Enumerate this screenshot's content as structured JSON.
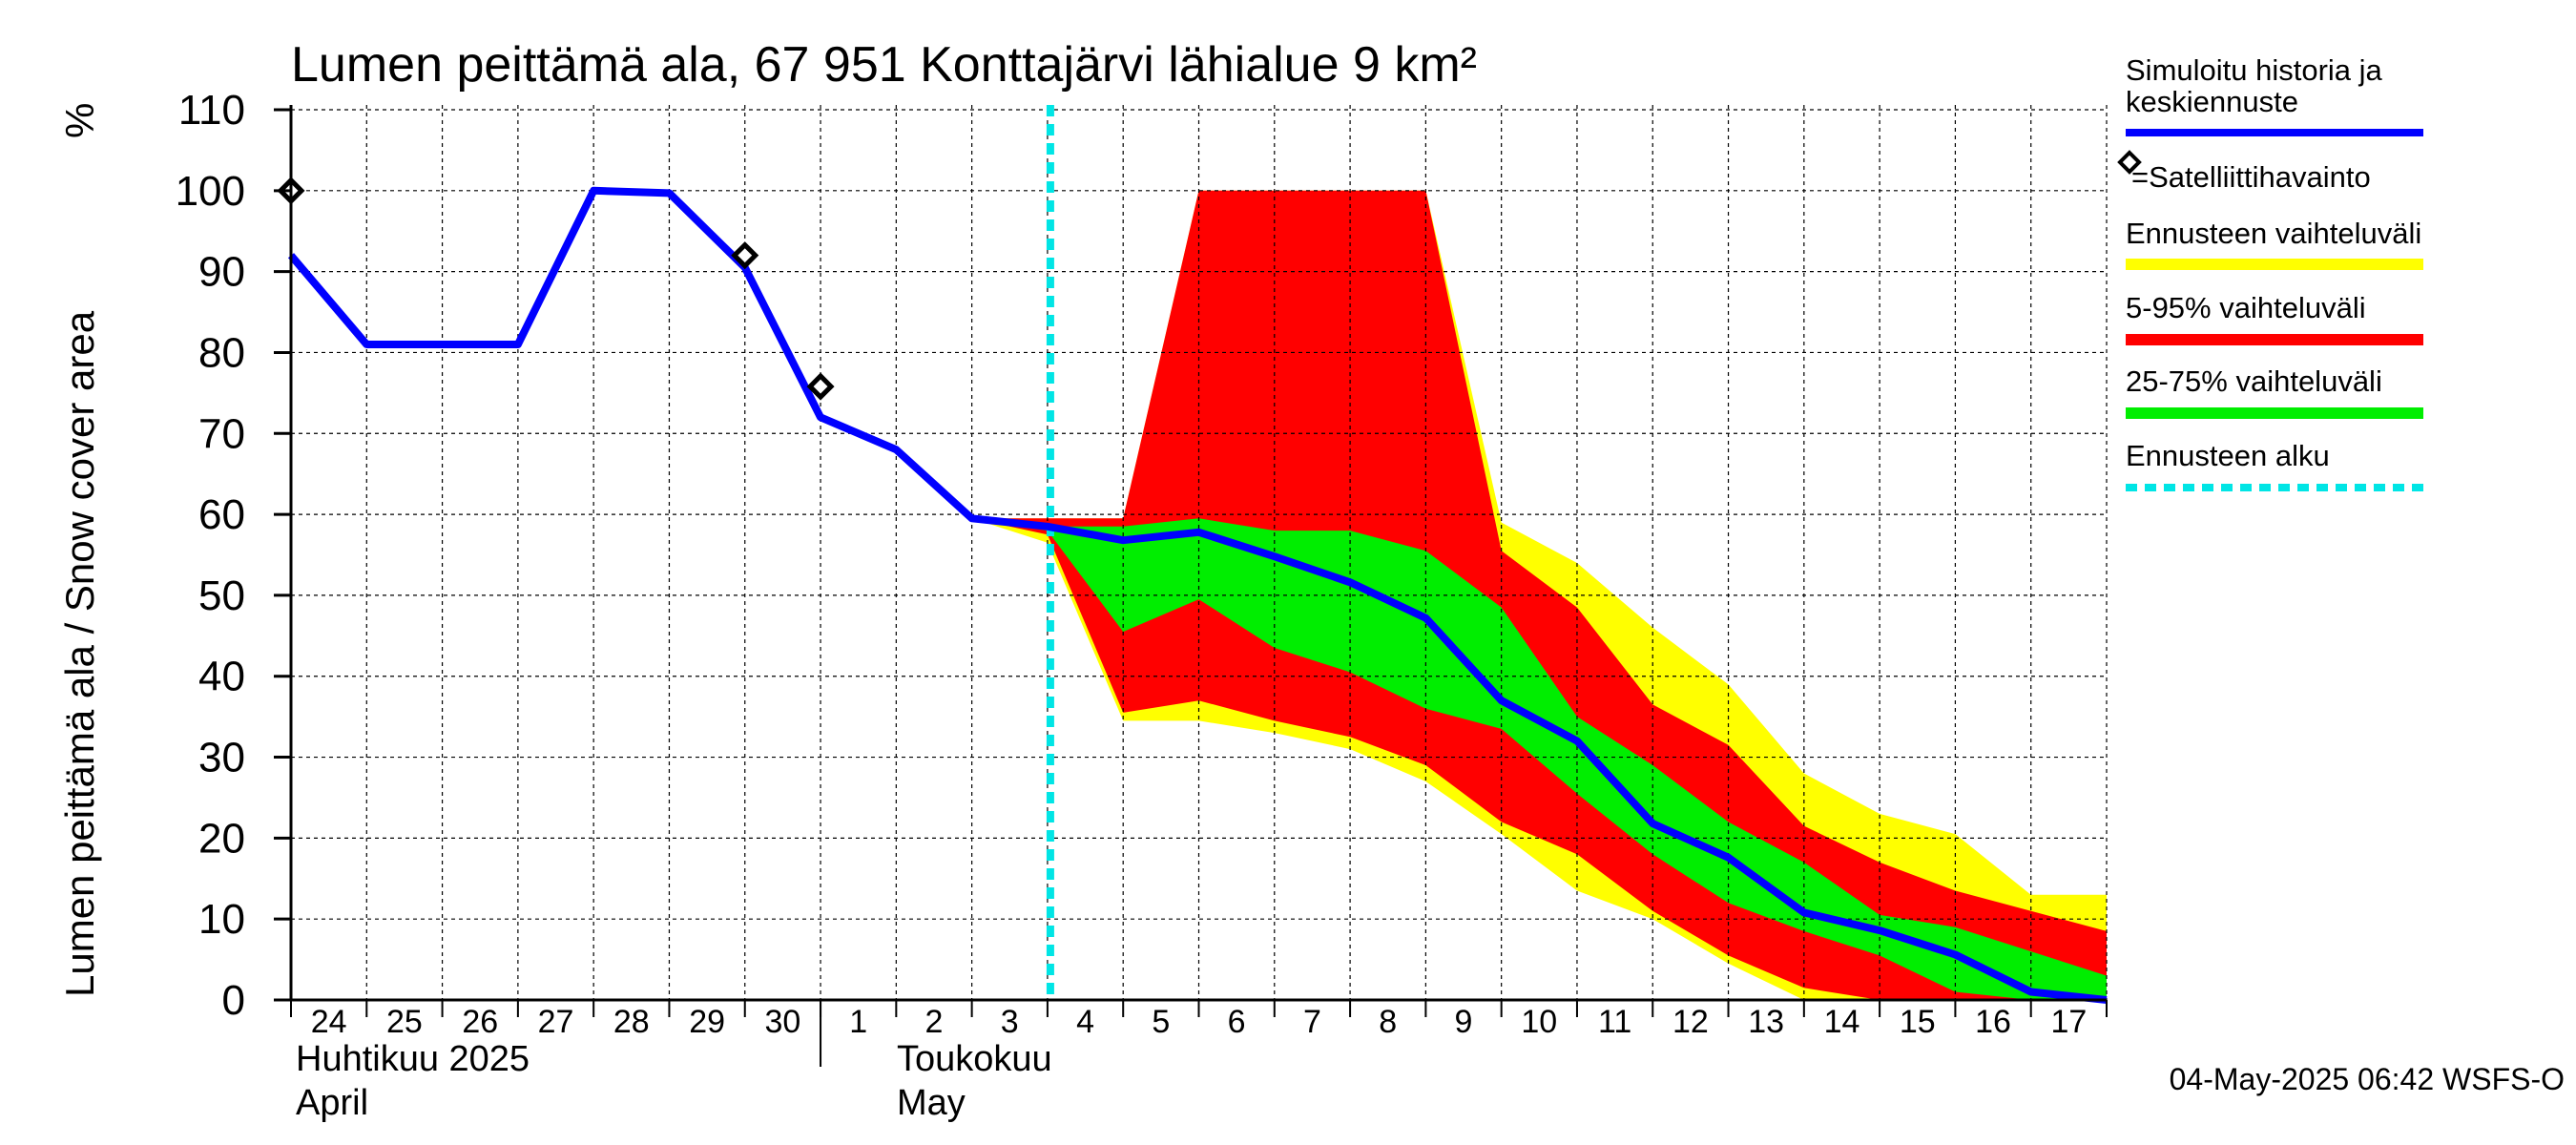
{
  "chart_data": {
    "type": "area",
    "title": "Lumen peittämä ala, 67 951 Konttajärvi lähialue 9 km²",
    "ylabel": "Lumen peittämä ala / Snow cover area",
    "yunit": "%",
    "ylim": [
      0,
      110
    ],
    "yticks": [
      0,
      10,
      20,
      30,
      40,
      50,
      60,
      70,
      80,
      90,
      100,
      110
    ],
    "x_days": [
      "24",
      "25",
      "26",
      "27",
      "28",
      "29",
      "30",
      "1",
      "2",
      "3",
      "4",
      "5",
      "6",
      "7",
      "8",
      "9",
      "10",
      "11",
      "12",
      "13",
      "14",
      "15",
      "16",
      "17"
    ],
    "x_dates": [
      "2025-04-24",
      "2025-04-25",
      "2025-04-26",
      "2025-04-27",
      "2025-04-28",
      "2025-04-29",
      "2025-04-30",
      "2025-05-01",
      "2025-05-02",
      "2025-05-03",
      "2025-05-04",
      "2025-05-05",
      "2025-05-06",
      "2025-05-07",
      "2025-05-08",
      "2025-05-09",
      "2025-05-10",
      "2025-05-11",
      "2025-05-12",
      "2025-05-13",
      "2025-05-14",
      "2025-05-15",
      "2025-05-16",
      "2025-05-17",
      "2025-05-18"
    ],
    "months": [
      {
        "fi": "Huhtikuu  2025",
        "en": "April"
      },
      {
        "fi": "Toukokuu",
        "en": "May"
      }
    ],
    "grid": true,
    "forecast_start": "2025-05-04",
    "series": [
      {
        "name": "Simuloitu historia ja keskiennuste",
        "color": "#0000ff",
        "points": [
          [
            "2025-04-24",
            92
          ],
          [
            "2025-04-25",
            81
          ],
          [
            "2025-04-26",
            81
          ],
          [
            "2025-04-27",
            81
          ],
          [
            "2025-04-28",
            100
          ],
          [
            "2025-04-29",
            99.7
          ],
          [
            "2025-04-30",
            90.5
          ],
          [
            "2025-05-01",
            72
          ],
          [
            "2025-05-02",
            68
          ],
          [
            "2025-05-03",
            59.5
          ],
          [
            "2025-05-04",
            58.5
          ],
          [
            "2025-05-05",
            56.8
          ],
          [
            "2025-05-06",
            57.8
          ],
          [
            "2025-05-07",
            54.8
          ],
          [
            "2025-05-08",
            51.6
          ],
          [
            "2025-05-09",
            47.2
          ],
          [
            "2025-05-10",
            37
          ],
          [
            "2025-05-11",
            32
          ],
          [
            "2025-05-12",
            21.8
          ],
          [
            "2025-05-13",
            17.6
          ],
          [
            "2025-05-14",
            10.8
          ],
          [
            "2025-05-15",
            8.6
          ],
          [
            "2025-05-16",
            5.6
          ],
          [
            "2025-05-17",
            1
          ],
          [
            "2025-05-18",
            0
          ]
        ]
      },
      {
        "name": "=Satelliittihavainto",
        "color": "#000000",
        "points": [
          [
            "2025-04-24",
            100
          ],
          [
            "2025-04-30",
            92
          ],
          [
            "2025-05-01",
            75.8
          ]
        ]
      }
    ],
    "bands": [
      {
        "name": "Ennusteen vaihteluväli",
        "color": "#ffff00",
        "x": [
          "2025-05-03",
          "2025-05-04",
          "2025-05-05",
          "2025-05-06",
          "2025-05-07",
          "2025-05-08",
          "2025-05-09",
          "2025-05-10",
          "2025-05-11",
          "2025-05-12",
          "2025-05-13",
          "2025-05-14",
          "2025-05-15",
          "2025-05-16",
          "2025-05-17",
          "2025-05-18"
        ],
        "upper": [
          59.5,
          59.5,
          59.5,
          100,
          100,
          100,
          100,
          59,
          54,
          46,
          39,
          28,
          23,
          20.5,
          13,
          13
        ],
        "lower": [
          59.5,
          56.5,
          34.5,
          34.5,
          33,
          31,
          27,
          20.5,
          13.5,
          10,
          4.5,
          0,
          0,
          0,
          0,
          0
        ]
      },
      {
        "name": "5-95% vaihteluväli",
        "color": "#ff0000",
        "x": [
          "2025-05-03",
          "2025-05-04",
          "2025-05-05",
          "2025-05-06",
          "2025-05-07",
          "2025-05-08",
          "2025-05-09",
          "2025-05-10",
          "2025-05-11",
          "2025-05-12",
          "2025-05-13",
          "2025-05-14",
          "2025-05-15",
          "2025-05-16",
          "2025-05-17",
          "2025-05-18"
        ],
        "upper": [
          59.5,
          59.5,
          59.5,
          100,
          100,
          100,
          100,
          55.5,
          48.5,
          36.5,
          31.5,
          21.5,
          17,
          13.5,
          11,
          8.5
        ],
        "lower": [
          59.5,
          57.5,
          35.5,
          37,
          34.5,
          32.5,
          29,
          22,
          18,
          11,
          5.5,
          1.5,
          0,
          0,
          0,
          0
        ]
      },
      {
        "name": "25-75% vaihteluväli",
        "color": "#00ee00",
        "x": [
          "2025-05-03",
          "2025-05-04",
          "2025-05-05",
          "2025-05-06",
          "2025-05-07",
          "2025-05-08",
          "2025-05-09",
          "2025-05-10",
          "2025-05-11",
          "2025-05-12",
          "2025-05-13",
          "2025-05-14",
          "2025-05-15",
          "2025-05-16",
          "2025-05-17",
          "2025-05-18"
        ],
        "upper": [
          59.5,
          58.5,
          58.5,
          59.5,
          58,
          58,
          55.5,
          48.5,
          35,
          29,
          22,
          17,
          10.5,
          9,
          6,
          3
        ],
        "lower": [
          59.5,
          58,
          45.5,
          49.5,
          43.5,
          40.5,
          36,
          33.5,
          25.5,
          18,
          12,
          8.5,
          5.5,
          1,
          0,
          0
        ]
      }
    ],
    "legend": [
      {
        "label": "Simuloitu historia ja keskiennuste",
        "color": "#0000ff",
        "style": "line"
      },
      {
        "label": "=Satelliittihavainto",
        "color": "#000000",
        "style": "diamond"
      },
      {
        "label": "Ennusteen vaihteluväli",
        "color": "#ffff00",
        "style": "band"
      },
      {
        "label": "5-95% vaihteluväli",
        "color": "#ff0000",
        "style": "band"
      },
      {
        "label": "25-75% vaihteluväli",
        "color": "#00ee00",
        "style": "band"
      },
      {
        "label": "Ennusteen alku",
        "color": "#00e5e5",
        "style": "dashed"
      }
    ],
    "footer": "04-May-2025 06:42 WSFS-O"
  }
}
